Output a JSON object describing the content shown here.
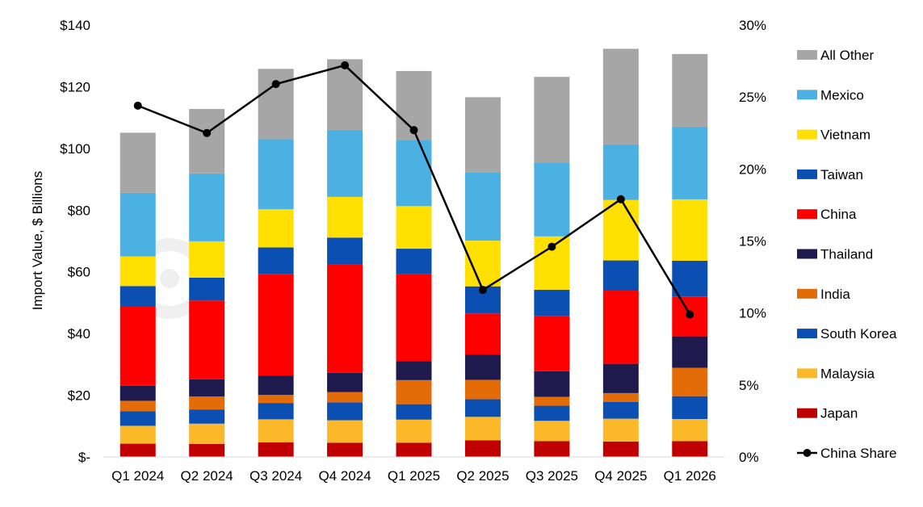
{
  "chart_data": {
    "type": "bar",
    "stacked": true,
    "categories": [
      "Q1 2024",
      "Q2 2024",
      "Q3 2024",
      "Q4 2024",
      "Q1 2025",
      "Q2 2025",
      "Q3 2025",
      "Q4 2025",
      "Q1 2026"
    ],
    "ylabel": "Import Value, $ Billions",
    "ylim": [
      0,
      140
    ],
    "y_ticks": [
      0,
      20,
      40,
      60,
      80,
      100,
      120,
      140
    ],
    "y_tick_labels": [
      "$-",
      "$20",
      "$40",
      "$60",
      "$80",
      "$100",
      "$120",
      "$140"
    ],
    "y2lim": [
      0,
      30
    ],
    "y2_ticks": [
      0,
      5,
      10,
      15,
      20,
      25,
      30
    ],
    "y2_tick_labels": [
      "0%",
      "5%",
      "10%",
      "15%",
      "20%",
      "25%",
      "30%"
    ],
    "grid": false,
    "legend_position": "right",
    "series": [
      {
        "name": "Japan",
        "color": "#C00000",
        "values": [
          4.3,
          4.2,
          4.7,
          4.6,
          4.6,
          5.4,
          5.1,
          5.0,
          5.1
        ]
      },
      {
        "name": "Malaysia",
        "color": "#FBB829",
        "values": [
          5.8,
          6.6,
          7.5,
          7.3,
          7.5,
          7.6,
          6.6,
          7.4,
          7.2
        ]
      },
      {
        "name": "South Korea",
        "color": "#0B4FB3",
        "values": [
          4.7,
          4.6,
          5.3,
          5.8,
          5.0,
          5.7,
          4.9,
          5.4,
          7.4
        ]
      },
      {
        "name": "India",
        "color": "#E36C09",
        "values": [
          3.4,
          4.2,
          2.6,
          3.3,
          7.8,
          6.3,
          2.9,
          2.9,
          9.2
        ]
      },
      {
        "name": "Thailand",
        "color": "#1F1A4D",
        "values": [
          4.9,
          5.6,
          6.2,
          6.3,
          6.1,
          8.1,
          8.3,
          9.5,
          10.2
        ]
      },
      {
        "name": "China",
        "color": "#FF0000",
        "values": [
          25.7,
          25.5,
          32.9,
          35.0,
          28.3,
          13.4,
          17.9,
          23.7,
          12.9
        ]
      },
      {
        "name": "Taiwan",
        "color": "#0B4FB3",
        "values": [
          6.6,
          7.4,
          8.7,
          8.8,
          8.2,
          8.8,
          8.5,
          9.8,
          11.6
        ]
      },
      {
        "name": "Vietnam",
        "color": "#FFE000",
        "values": [
          9.6,
          11.8,
          12.4,
          13.2,
          13.8,
          14.8,
          17.3,
          19.6,
          19.9
        ]
      },
      {
        "name": "Mexico",
        "color": "#4BB0E2",
        "values": [
          20.6,
          22.0,
          22.7,
          21.7,
          21.5,
          22.2,
          23.9,
          18.0,
          23.4
        ]
      },
      {
        "name": "All Other",
        "color": "#A6A6A6",
        "values": [
          19.5,
          20.9,
          22.8,
          22.9,
          22.3,
          24.3,
          27.8,
          31.0,
          23.7
        ]
      }
    ],
    "line_series": {
      "name": "China Share",
      "color": "#000000",
      "axis": "right",
      "values": [
        24.4,
        22.5,
        25.9,
        27.2,
        22.7,
        11.6,
        14.6,
        17.9,
        9.9
      ]
    },
    "legend_order": [
      "All Other",
      "Mexico",
      "Vietnam",
      "Taiwan",
      "China",
      "Thailand",
      "India",
      "South Korea",
      "Malaysia",
      "Japan",
      "China Share"
    ]
  }
}
